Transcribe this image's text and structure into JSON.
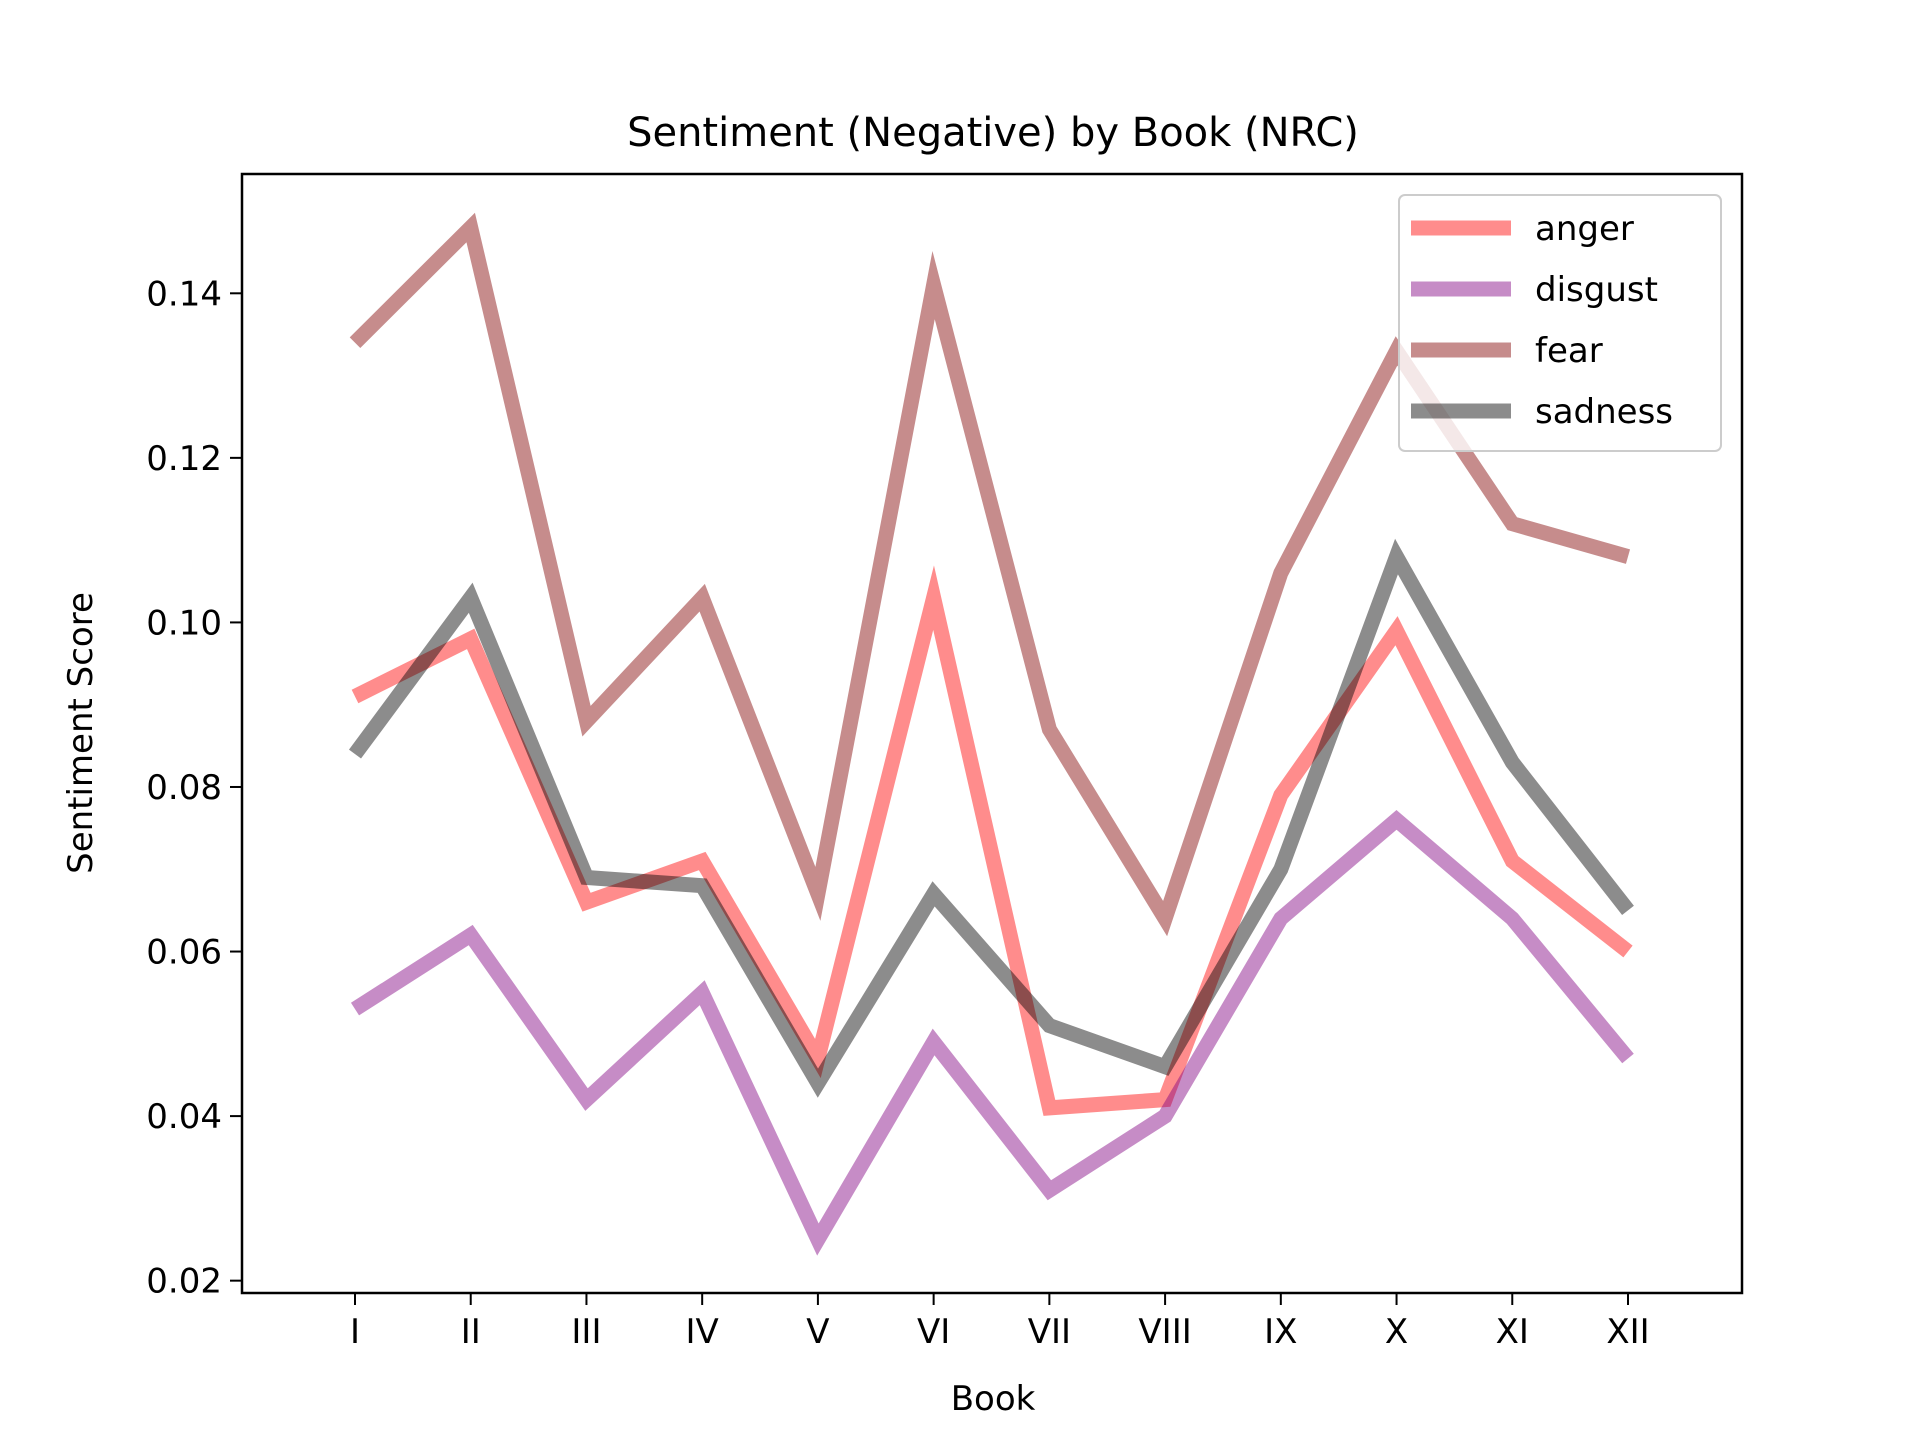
{
  "chart_data": {
    "type": "line",
    "title": "Sentiment (Negative) by Book (NRC)",
    "xlabel": "Book",
    "ylabel": "Sentiment Score",
    "categories": [
      "I",
      "II",
      "III",
      "IV",
      "V",
      "VI",
      "VII",
      "VIII",
      "IX",
      "X",
      "XI",
      "XII"
    ],
    "ylim": [
      0.0185,
      0.1545
    ],
    "yticks": [
      0.02,
      0.04,
      0.06,
      0.08,
      0.1,
      0.12,
      0.14
    ],
    "ytick_labels": [
      "0.02",
      "0.04",
      "0.06",
      "0.08",
      "0.10",
      "0.12",
      "0.14"
    ],
    "grid": false,
    "legend_position": "top-right",
    "series": [
      {
        "name": "anger",
        "color": "#ff0000",
        "opacity": 0.45,
        "values": [
          0.091,
          0.098,
          0.066,
          0.071,
          0.047,
          0.103,
          0.041,
          0.042,
          0.079,
          0.099,
          0.071,
          0.06
        ]
      },
      {
        "name": "disgust",
        "color": "#800080",
        "opacity": 0.45,
        "values": [
          0.053,
          0.062,
          0.042,
          0.055,
          0.025,
          0.049,
          0.031,
          0.04,
          0.064,
          0.076,
          0.064,
          0.047
        ]
      },
      {
        "name": "fear",
        "color": "#800000",
        "opacity": 0.45,
        "values": [
          0.134,
          0.148,
          0.088,
          0.103,
          0.067,
          0.141,
          0.087,
          0.064,
          0.106,
          0.133,
          0.112,
          0.108
        ]
      },
      {
        "name": "sadness",
        "color": "#000000",
        "opacity": 0.45,
        "values": [
          0.084,
          0.103,
          0.069,
          0.068,
          0.044,
          0.067,
          0.051,
          0.046,
          0.07,
          0.108,
          0.083,
          0.065
        ]
      }
    ]
  }
}
